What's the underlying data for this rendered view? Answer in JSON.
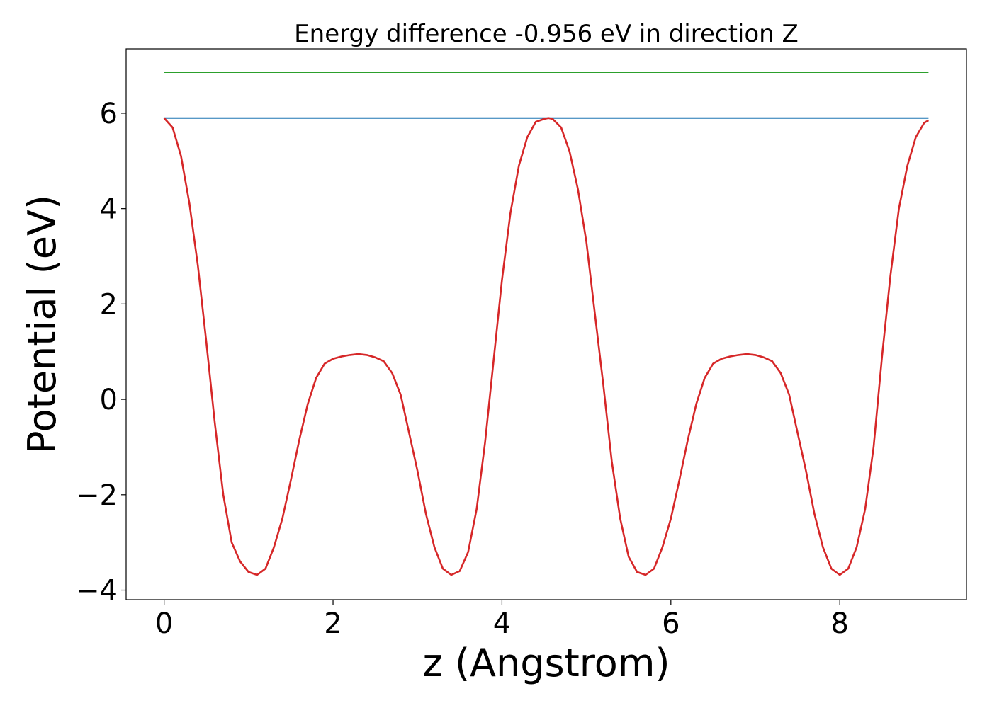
{
  "chart_data": {
    "type": "line",
    "title": "Energy difference -0.956 eV in direction Z",
    "xlabel": "z (Angstrom)",
    "ylabel": "Potential (eV)",
    "xlim": [
      -0.45,
      9.5
    ],
    "ylim": [
      -4.2,
      7.35
    ],
    "xticks": [
      0,
      2,
      4,
      6,
      8
    ],
    "xtick_labels": [
      "0",
      "2",
      "4",
      "6",
      "8"
    ],
    "yticks": [
      -4,
      -2,
      0,
      2,
      4,
      6
    ],
    "ytick_labels": [
      "−4",
      "−2",
      "0",
      "2",
      "4",
      "6"
    ],
    "grid": false,
    "series": [
      {
        "color": "#d62728",
        "x": [
          0,
          0.1,
          0.2,
          0.3,
          0.4,
          0.5,
          0.6,
          0.7,
          0.8,
          0.9,
          1.0,
          1.1,
          1.2,
          1.3,
          1.4,
          1.5,
          1.6,
          1.7,
          1.8,
          1.9,
          2.0,
          2.1,
          2.2,
          2.3,
          2.4,
          2.5,
          2.6,
          2.7,
          2.8,
          2.9,
          3.0,
          3.1,
          3.2,
          3.3,
          3.4,
          3.5,
          3.6,
          3.7,
          3.8,
          3.9,
          4.0,
          4.1,
          4.2,
          4.3,
          4.4,
          4.5,
          4.55,
          4.6,
          4.7,
          4.8,
          4.9,
          5.0,
          5.1,
          5.2,
          5.3,
          5.4,
          5.5,
          5.6,
          5.7,
          5.8,
          5.9,
          6.0,
          6.1,
          6.2,
          6.3,
          6.4,
          6.5,
          6.6,
          6.7,
          6.8,
          6.9,
          7.0,
          7.1,
          7.2,
          7.3,
          7.4,
          7.5,
          7.6,
          7.7,
          7.8,
          7.9,
          8.0,
          8.1,
          8.2,
          8.3,
          8.4,
          8.5,
          8.6,
          8.7,
          8.8,
          8.9,
          9.0,
          9.05
        ],
        "y": [
          5.9,
          5.7,
          5.1,
          4.1,
          2.8,
          1.2,
          -0.5,
          -2.0,
          -3.0,
          -3.4,
          -3.62,
          -3.68,
          -3.55,
          -3.1,
          -2.5,
          -1.7,
          -0.85,
          -0.1,
          0.45,
          0.75,
          0.85,
          0.9,
          0.93,
          0.95,
          0.93,
          0.88,
          0.8,
          0.55,
          0.1,
          -0.7,
          -1.5,
          -2.4,
          -3.1,
          -3.55,
          -3.68,
          -3.6,
          -3.2,
          -2.3,
          -0.9,
          0.8,
          2.5,
          3.9,
          4.9,
          5.5,
          5.82,
          5.88,
          5.9,
          5.88,
          5.7,
          5.2,
          4.4,
          3.3,
          1.8,
          0.3,
          -1.3,
          -2.5,
          -3.3,
          -3.62,
          -3.68,
          -3.55,
          -3.1,
          -2.5,
          -1.7,
          -0.85,
          -0.1,
          0.45,
          0.75,
          0.85,
          0.9,
          0.93,
          0.95,
          0.93,
          0.88,
          0.8,
          0.55,
          0.1,
          -0.7,
          -1.5,
          -2.4,
          -3.1,
          -3.55,
          -3.68,
          -3.55,
          -3.1,
          -2.3,
          -1.0,
          0.9,
          2.6,
          4.0,
          4.9,
          5.5,
          5.8,
          5.85
        ]
      },
      {
        "color": "#1f77b4",
        "x": [
          0,
          9.05
        ],
        "y": [
          5.9,
          5.9
        ]
      },
      {
        "color": "#2ca02c",
        "x": [
          0,
          9.05
        ],
        "y": [
          6.86,
          6.86
        ]
      }
    ]
  }
}
